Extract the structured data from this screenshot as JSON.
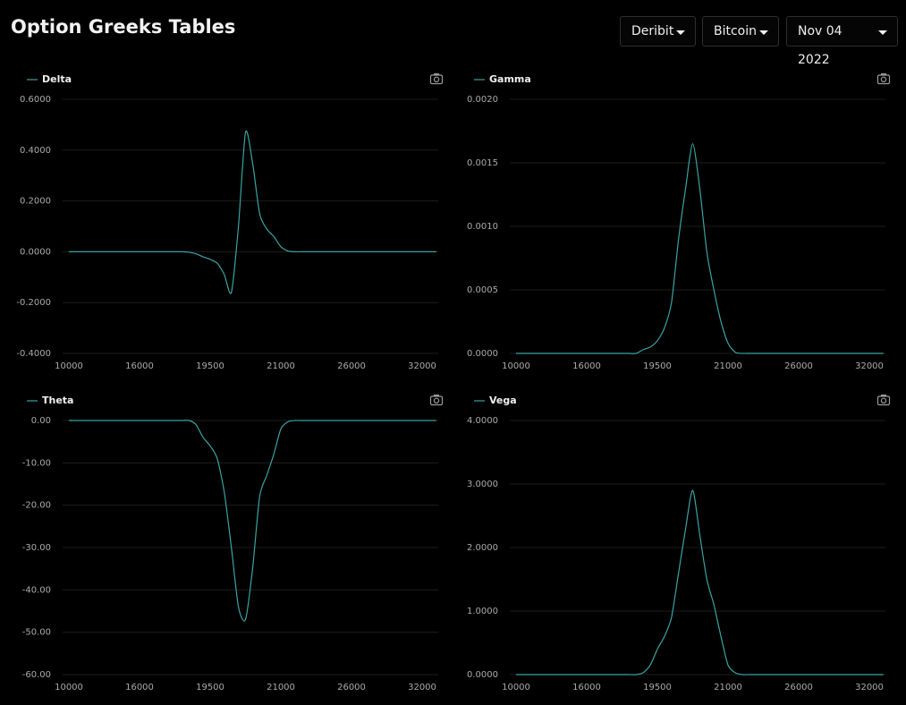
{
  "header": {
    "title": "Option Greeks Tables",
    "dropdowns": [
      "Deribit",
      "Bitcoin",
      "Nov 04 2022"
    ]
  },
  "chart_data": [
    {
      "type": "line",
      "grid": true,
      "categories": [
        "10000",
        null,
        null,
        null,
        null,
        null,
        null,
        null,
        null,
        null,
        "16000",
        null,
        null,
        null,
        null,
        null,
        null,
        null,
        null,
        null,
        "19500",
        null,
        null,
        null,
        null,
        null,
        null,
        null,
        null,
        null,
        "21000",
        null,
        null,
        null,
        null,
        null,
        null,
        null,
        null,
        null,
        "26000",
        null,
        null,
        null,
        null,
        null,
        null,
        null,
        null,
        null,
        "32000",
        null,
        null
      ],
      "series": [
        {
          "name": "Delta",
          "color": "#3aa3a3",
          "values": [
            0,
            0,
            0,
            0,
            0,
            0,
            0,
            0,
            0,
            0,
            0,
            0,
            0,
            0,
            0,
            0,
            0,
            -0.002,
            -0.008,
            -0.02,
            -0.03,
            -0.045,
            -0.09,
            -0.16,
            0.1,
            0.47,
            0.35,
            0.15,
            0.09,
            0.06,
            0.02,
            0.003,
            0,
            0,
            0,
            0,
            0,
            0,
            0,
            0,
            0,
            0,
            0,
            0,
            0,
            0,
            0,
            0,
            0,
            0,
            0,
            0,
            0
          ]
        }
      ],
      "ylim": [
        -0.4,
        0.6
      ],
      "yticks": [
        {
          "value": 0.6,
          "label": "0.6000"
        },
        {
          "value": 0.4,
          "label": "0.4000"
        },
        {
          "value": 0.2,
          "label": "0.2000"
        },
        {
          "value": 0,
          "label": "0.0000"
        },
        {
          "value": -0.2,
          "label": "-0.2000"
        },
        {
          "value": -0.4,
          "label": "-0.4000"
        }
      ]
    },
    {
      "type": "line",
      "grid": true,
      "categories": [
        "10000",
        null,
        null,
        null,
        null,
        null,
        null,
        null,
        null,
        null,
        "16000",
        null,
        null,
        null,
        null,
        null,
        null,
        null,
        null,
        null,
        "19500",
        null,
        null,
        null,
        null,
        null,
        null,
        null,
        null,
        null,
        "21000",
        null,
        null,
        null,
        null,
        null,
        null,
        null,
        null,
        null,
        "26000",
        null,
        null,
        null,
        null,
        null,
        null,
        null,
        null,
        null,
        "32000",
        null,
        null
      ],
      "series": [
        {
          "name": "Gamma",
          "color": "#3aa3a3",
          "values": [
            0,
            0,
            0,
            0,
            0,
            0,
            0,
            0,
            0,
            0,
            0,
            0,
            0,
            0,
            0,
            0,
            0,
            0,
            3e-05,
            5e-05,
            0.0001,
            0.0002,
            0.0004,
            0.0009,
            0.0013,
            0.00165,
            0.0013,
            0.0008,
            0.0005,
            0.00025,
            8e-05,
            1e-05,
            0,
            0,
            0,
            0,
            0,
            0,
            0,
            0,
            0,
            0,
            0,
            0,
            0,
            0,
            0,
            0,
            0,
            0,
            0,
            0,
            0
          ]
        }
      ],
      "ylim": [
        0,
        0.002
      ],
      "yticks": [
        {
          "value": 0.002,
          "label": "0.0020"
        },
        {
          "value": 0.0015,
          "label": "0.0015"
        },
        {
          "value": 0.001,
          "label": "0.0010"
        },
        {
          "value": 0.0005,
          "label": "0.0005"
        },
        {
          "value": 0,
          "label": "0.0000"
        }
      ]
    },
    {
      "type": "line",
      "grid": true,
      "categories": [
        "10000",
        null,
        null,
        null,
        null,
        null,
        null,
        null,
        null,
        null,
        "16000",
        null,
        null,
        null,
        null,
        null,
        null,
        null,
        null,
        null,
        "19500",
        null,
        null,
        null,
        null,
        null,
        null,
        null,
        null,
        null,
        "21000",
        null,
        null,
        null,
        null,
        null,
        null,
        null,
        null,
        null,
        "26000",
        null,
        null,
        null,
        null,
        null,
        null,
        null,
        null,
        null,
        "32000",
        null,
        null
      ],
      "series": [
        {
          "name": "Theta",
          "color": "#3aa3a3",
          "values": [
            0,
            0,
            0,
            0,
            0,
            0,
            0,
            0,
            0,
            0,
            0,
            0,
            0,
            0,
            0,
            0,
            0,
            0,
            -1,
            -4,
            -6,
            -9,
            -17,
            -30,
            -44,
            -47,
            -35,
            -18,
            -13,
            -8,
            -2,
            -0.3,
            0,
            0,
            0,
            0,
            0,
            0,
            0,
            0,
            0,
            0,
            0,
            0,
            0,
            0,
            0,
            0,
            0,
            0,
            0,
            0,
            0
          ]
        }
      ],
      "ylim": [
        -60,
        0
      ],
      "yticks": [
        {
          "value": 0,
          "label": "0.00"
        },
        {
          "value": -10,
          "label": "-10.00"
        },
        {
          "value": -20,
          "label": "-20.00"
        },
        {
          "value": -30,
          "label": "-30.00"
        },
        {
          "value": -40,
          "label": "-40.00"
        },
        {
          "value": -50,
          "label": "-50.00"
        },
        {
          "value": -60,
          "label": "-60.00"
        }
      ]
    },
    {
      "type": "line",
      "grid": true,
      "categories": [
        "10000",
        null,
        null,
        null,
        null,
        null,
        null,
        null,
        null,
        null,
        "16000",
        null,
        null,
        null,
        null,
        null,
        null,
        null,
        null,
        null,
        "19500",
        null,
        null,
        null,
        null,
        null,
        null,
        null,
        null,
        null,
        "21000",
        null,
        null,
        null,
        null,
        null,
        null,
        null,
        null,
        null,
        "26000",
        null,
        null,
        null,
        null,
        null,
        null,
        null,
        null,
        null,
        "32000",
        null,
        null
      ],
      "series": [
        {
          "name": "Vega",
          "color": "#3aa3a3",
          "values": [
            0,
            0,
            0,
            0,
            0,
            0,
            0,
            0,
            0,
            0,
            0,
            0,
            0,
            0,
            0,
            0,
            0,
            0,
            0.03,
            0.15,
            0.4,
            0.6,
            0.9,
            1.6,
            2.3,
            2.9,
            2.2,
            1.5,
            1.1,
            0.6,
            0.15,
            0.03,
            0,
            0,
            0,
            0,
            0,
            0,
            0,
            0,
            0,
            0,
            0,
            0,
            0,
            0,
            0,
            0,
            0,
            0,
            0,
            0,
            0
          ]
        }
      ],
      "ylim": [
        0,
        4
      ],
      "yticks": [
        {
          "value": 4,
          "label": "4.0000"
        },
        {
          "value": 3,
          "label": "3.0000"
        },
        {
          "value": 2,
          "label": "2.0000"
        },
        {
          "value": 1,
          "label": "1.0000"
        },
        {
          "value": 0,
          "label": "0.0000"
        }
      ]
    }
  ]
}
